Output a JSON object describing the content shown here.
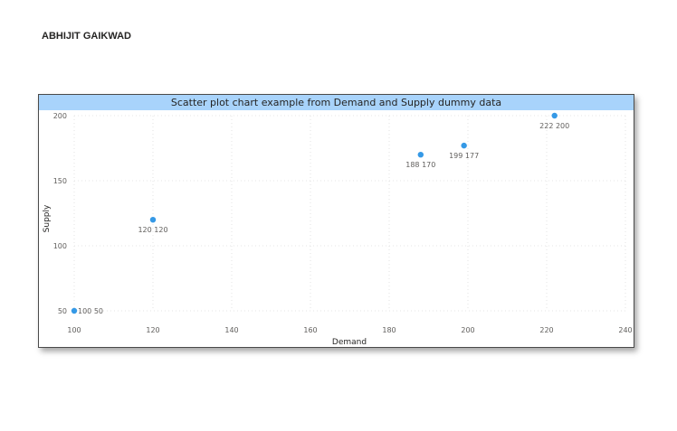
{
  "report": {
    "author": "ABHIJIT GAIKWAD"
  },
  "chart_data": {
    "type": "scatter",
    "title": "Scatter plot chart example from Demand and Supply dummy data",
    "xlabel": "Demand",
    "ylabel": "Supply",
    "xlim": [
      100,
      240
    ],
    "ylim": [
      50,
      200
    ],
    "xticks": [
      100,
      120,
      140,
      160,
      180,
      200,
      220,
      240
    ],
    "yticks": [
      50,
      100,
      150,
      200
    ],
    "grid": true,
    "point_color": "#3599e6",
    "points": [
      {
        "x": 100,
        "y": 50,
        "label": "100 50"
      },
      {
        "x": 120,
        "y": 120,
        "label": "120 120"
      },
      {
        "x": 188,
        "y": 170,
        "label": "188 170"
      },
      {
        "x": 199,
        "y": 177,
        "label": "199 177"
      },
      {
        "x": 222,
        "y": 200,
        "label": "222 200"
      }
    ]
  }
}
